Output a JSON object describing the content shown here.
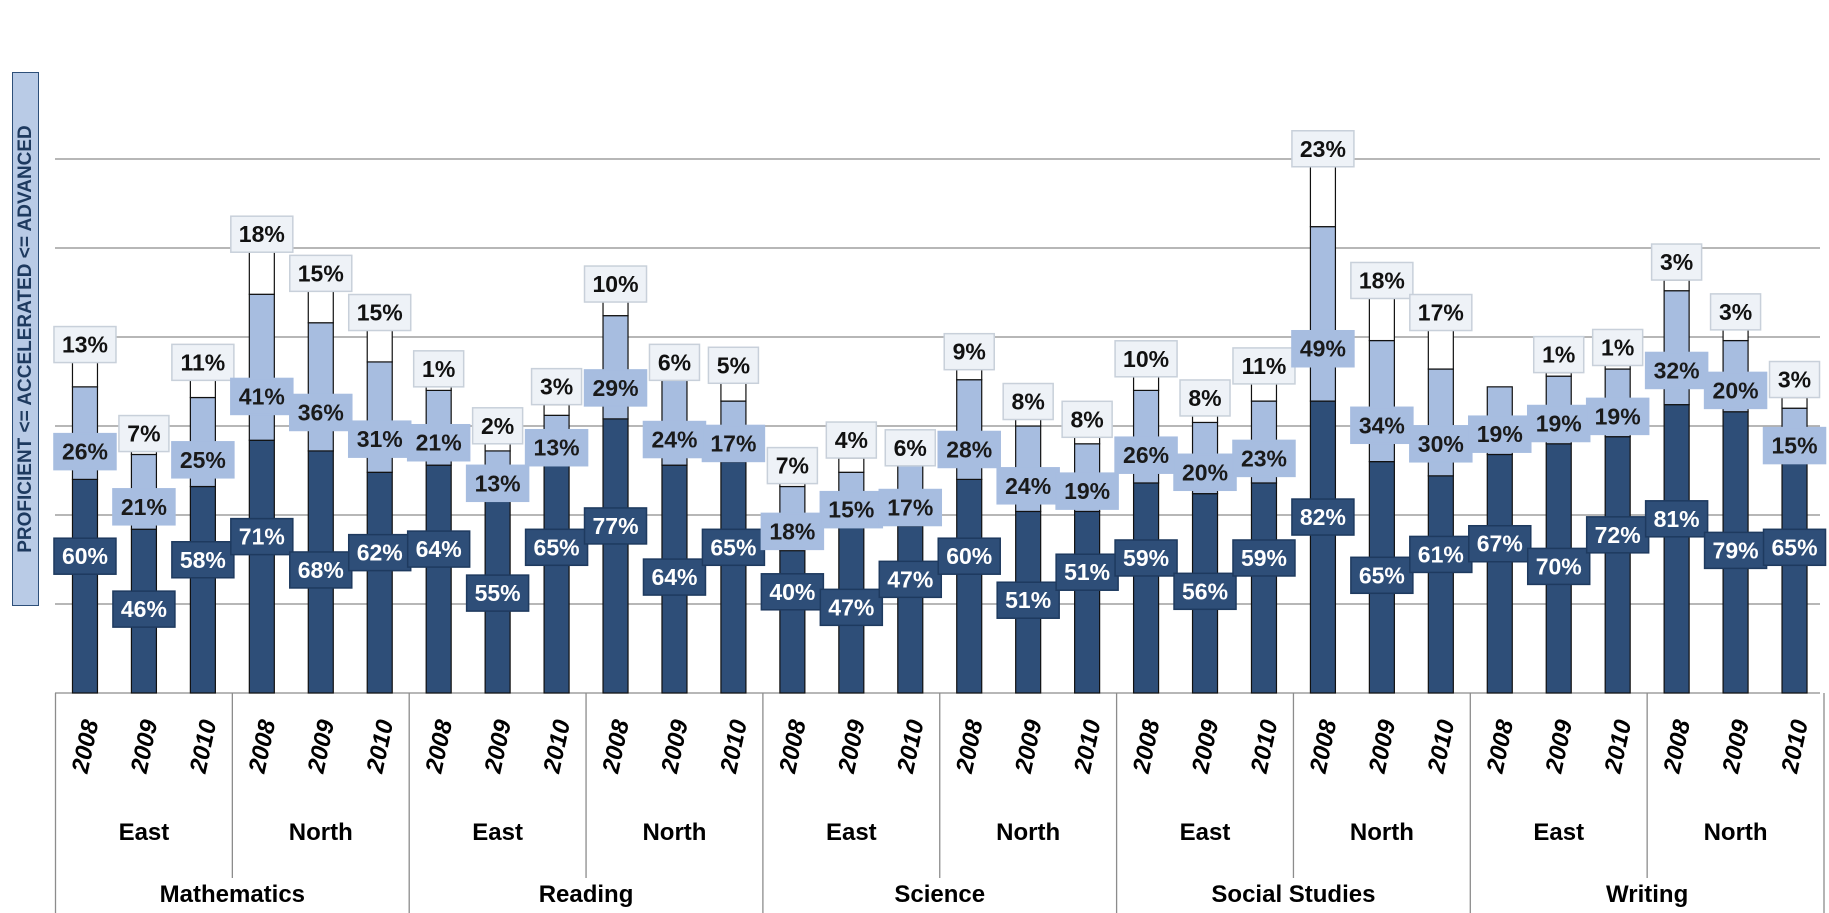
{
  "chart_data": {
    "type": "bar",
    "stacked": true,
    "ylabel": "PROFICIENT <= ACCELERATED <= ADVANCED",
    "grid": true,
    "legend": "none",
    "ylim": [
      0,
      155
    ],
    "colors": {
      "proficient": "#2e4e78",
      "accelerated": "#a7bde0",
      "advanced": "#ffffff",
      "label_advanced_bg": "#eef2f7"
    },
    "categories": [
      {
        "subject": "Mathematics",
        "region": "East",
        "year": "2008"
      },
      {
        "subject": "Mathematics",
        "region": "East",
        "year": "2009"
      },
      {
        "subject": "Mathematics",
        "region": "East",
        "year": "2010"
      },
      {
        "subject": "Mathematics",
        "region": "North",
        "year": "2008"
      },
      {
        "subject": "Mathematics",
        "region": "North",
        "year": "2009"
      },
      {
        "subject": "Mathematics",
        "region": "North",
        "year": "2010"
      },
      {
        "subject": "Reading",
        "region": "East",
        "year": "2008"
      },
      {
        "subject": "Reading",
        "region": "East",
        "year": "2009"
      },
      {
        "subject": "Reading",
        "region": "East",
        "year": "2010"
      },
      {
        "subject": "Reading",
        "region": "North",
        "year": "2008"
      },
      {
        "subject": "Reading",
        "region": "North",
        "year": "2009"
      },
      {
        "subject": "Reading",
        "region": "North",
        "year": "2010"
      },
      {
        "subject": "Science",
        "region": "East",
        "year": "2008"
      },
      {
        "subject": "Science",
        "region": "East",
        "year": "2009"
      },
      {
        "subject": "Science",
        "region": "East",
        "year": "2010"
      },
      {
        "subject": "Science",
        "region": "North",
        "year": "2008"
      },
      {
        "subject": "Science",
        "region": "North",
        "year": "2009"
      },
      {
        "subject": "Science",
        "region": "North",
        "year": "2010"
      },
      {
        "subject": "Social Studies",
        "region": "East",
        "year": "2008"
      },
      {
        "subject": "Social Studies",
        "region": "East",
        "year": "2009"
      },
      {
        "subject": "Social Studies",
        "region": "East",
        "year": "2010"
      },
      {
        "subject": "Social Studies",
        "region": "North",
        "year": "2008"
      },
      {
        "subject": "Social Studies",
        "region": "North",
        "year": "2009"
      },
      {
        "subject": "Social Studies",
        "region": "North",
        "year": "2010"
      },
      {
        "subject": "Writing",
        "region": "East",
        "year": "2008"
      },
      {
        "subject": "Writing",
        "region": "East",
        "year": "2009"
      },
      {
        "subject": "Writing",
        "region": "East",
        "year": "2010"
      },
      {
        "subject": "Writing",
        "region": "North",
        "year": "2008"
      },
      {
        "subject": "Writing",
        "region": "North",
        "year": "2009"
      },
      {
        "subject": "Writing",
        "region": "North",
        "year": "2010"
      }
    ],
    "series": [
      {
        "key": "proficient",
        "values": [
          60,
          46,
          58,
          71,
          68,
          62,
          64,
          55,
          65,
          77,
          64,
          65,
          40,
          47,
          47,
          60,
          51,
          51,
          59,
          56,
          59,
          82,
          65,
          61,
          67,
          70,
          72,
          81,
          79,
          65
        ]
      },
      {
        "key": "accelerated",
        "values": [
          26,
          21,
          25,
          41,
          36,
          31,
          21,
          13,
          13,
          29,
          24,
          17,
          18,
          15,
          17,
          28,
          24,
          19,
          26,
          20,
          23,
          49,
          34,
          30,
          19,
          19,
          19,
          32,
          20,
          15
        ]
      },
      {
        "key": "advanced",
        "values": [
          13,
          7,
          11,
          18,
          15,
          15,
          1,
          2,
          3,
          10,
          6,
          5,
          7,
          4,
          6,
          9,
          8,
          8,
          10,
          8,
          11,
          23,
          18,
          17,
          null,
          1,
          1,
          3,
          3,
          3
        ]
      }
    ],
    "regions": [
      "East",
      "North"
    ],
    "subjects": [
      "Mathematics",
      "Reading",
      "Science",
      "Social Studies",
      "Writing"
    ]
  }
}
